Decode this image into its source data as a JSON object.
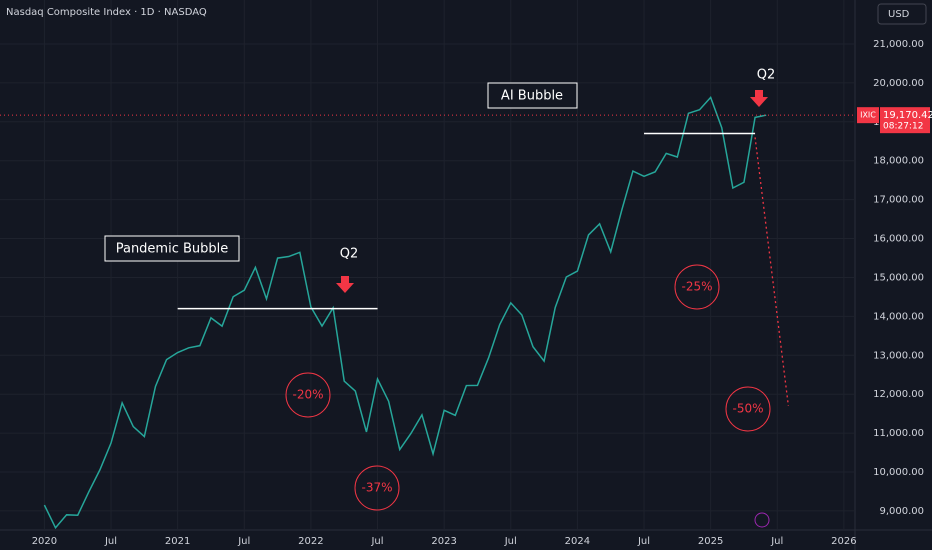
{
  "chart_data": {
    "type": "line",
    "title": "Nasdaq Composite Index · 1D · NASDAQ",
    "currency": "USD",
    "color": "#26a69a",
    "grid": true,
    "x": [
      "2020-01",
      "2020-02",
      "2020-03",
      "2020-04",
      "2020-05",
      "2020-06",
      "2020-07",
      "2020-08",
      "2020-09",
      "2020-10",
      "2020-11",
      "2020-12",
      "2021-01",
      "2021-02",
      "2021-03",
      "2021-04",
      "2021-05",
      "2021-06",
      "2021-07",
      "2021-08",
      "2021-09",
      "2021-10",
      "2021-11",
      "2021-12",
      "2022-01",
      "2022-02",
      "2022-03",
      "2022-04",
      "2022-05",
      "2022-06",
      "2022-07",
      "2022-08",
      "2022-09",
      "2022-10",
      "2022-11",
      "2022-12",
      "2023-01",
      "2023-02",
      "2023-03",
      "2023-04",
      "2023-05",
      "2023-06",
      "2023-07",
      "2023-08",
      "2023-09",
      "2023-10",
      "2023-11",
      "2023-12",
      "2024-01",
      "2024-02",
      "2024-03",
      "2024-04",
      "2024-05",
      "2024-06",
      "2024-07",
      "2024-08",
      "2024-09",
      "2024-10",
      "2024-11",
      "2024-12",
      "2025-01",
      "2025-02",
      "2025-03",
      "2025-04",
      "2025-05",
      "2025-06"
    ],
    "values": [
      9150,
      8567,
      8900,
      8890,
      9490,
      10058,
      10745,
      11775,
      11168,
      10911,
      12199,
      12888,
      13070,
      13192,
      13247,
      13962,
      13749,
      14504,
      14673,
      15259,
      14449,
      15498,
      15538,
      15645,
      14240,
      13751,
      14220,
      12335,
      12081,
      11029,
      12391,
      11816,
      10576,
      10988,
      11468,
      10466,
      11585,
      11456,
      12222,
      12227,
      12935,
      13788,
      14346,
      14035,
      13219,
      12851,
      14226,
      15011,
      15164,
      16092,
      16379,
      15658,
      16735,
      17733,
      17599,
      17714,
      18189,
      18095,
      19218,
      19311,
      19627,
      18847,
      17299,
      17446,
      19113,
      19170
    ],
    "xlim": [
      "2019-09",
      "2026-02"
    ],
    "xticks": [
      {
        "value": "2020-01",
        "label": "2020"
      },
      {
        "value": "2020-07",
        "label": "Jul"
      },
      {
        "value": "2021-01",
        "label": "2021"
      },
      {
        "value": "2021-07",
        "label": "Jul"
      },
      {
        "value": "2022-01",
        "label": "2022"
      },
      {
        "value": "2022-07",
        "label": "Jul"
      },
      {
        "value": "2023-01",
        "label": "2023"
      },
      {
        "value": "2023-07",
        "label": "Jul"
      },
      {
        "value": "2024-01",
        "label": "2024"
      },
      {
        "value": "2024-07",
        "label": "Jul"
      },
      {
        "value": "2025-01",
        "label": "2025"
      },
      {
        "value": "2025-07",
        "label": "Jul"
      },
      {
        "value": "2026-01",
        "label": "2026"
      }
    ],
    "ylim": [
      8510,
      22130
    ],
    "yticks": [
      {
        "value": 9000,
        "label": "9,000.00"
      },
      {
        "value": 10000,
        "label": "10,000.00"
      },
      {
        "value": 11000,
        "label": "11,000.00"
      },
      {
        "value": 12000,
        "label": "12,000.00"
      },
      {
        "value": 13000,
        "label": "13,000.00"
      },
      {
        "value": 14000,
        "label": "14,000.00"
      },
      {
        "value": 15000,
        "label": "15,000.00"
      },
      {
        "value": 16000,
        "label": "16,000.00"
      },
      {
        "value": 17000,
        "label": "17,000.00"
      },
      {
        "value": 18000,
        "label": "18,000.00"
      },
      {
        "value": 19000,
        "label": "19,000.00"
      },
      {
        "value": 20000,
        "label": "20,000.00"
      },
      {
        "value": 21000,
        "label": "21,000.00"
      }
    ],
    "symbol": "IXIC",
    "last_price": {
      "value": 19170.42,
      "label": "19,170.42"
    },
    "countdown": "08:27:12",
    "levels": [
      {
        "value": 14200,
        "from": "2021-01",
        "to": "2022-07"
      },
      {
        "value": 18700,
        "from": "2024-07",
        "to": "2025-05"
      }
    ],
    "projection": {
      "from": "2025-05",
      "to": "2025-08",
      "start": 18600,
      "end": 11700
    },
    "annotations": [
      "Pandemic Bubble",
      "AI Bubble",
      "Q2",
      "Q2",
      "-20%",
      "-37%",
      "-25%",
      "-50%"
    ]
  }
}
